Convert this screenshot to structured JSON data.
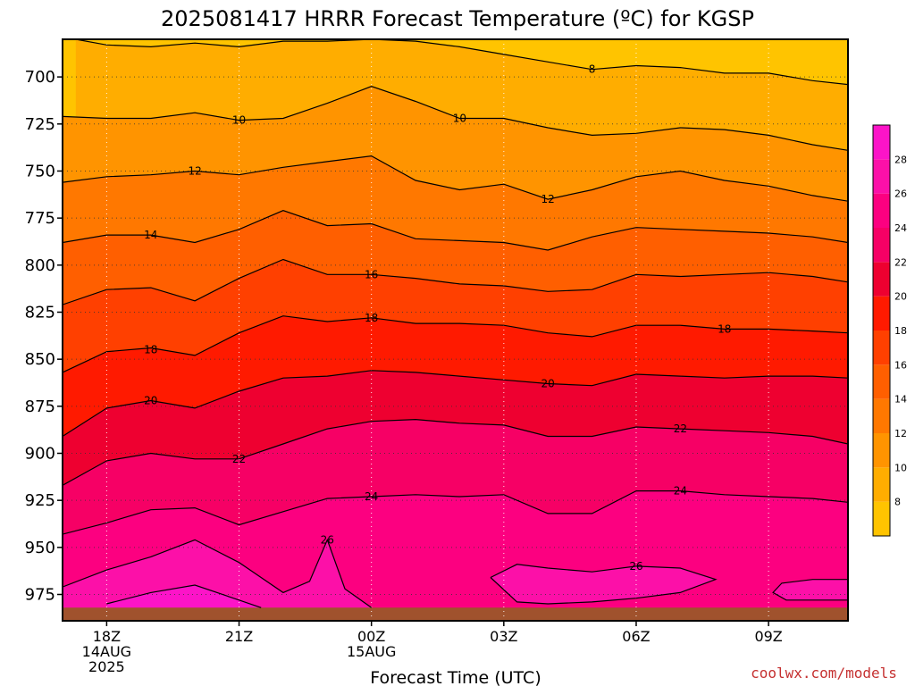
{
  "chart_data": {
    "type": "heatmap",
    "title": "2025081417 HRRR Forecast Temperature (ºC) for KGSP",
    "xlabel": "Forecast Time (UTC)",
    "ylabel": "",
    "credit": "coolwx.com/models",
    "x_ticks": [
      {
        "hour": 1,
        "lines": [
          "18Z",
          "14AUG",
          "2025"
        ]
      },
      {
        "hour": 4,
        "lines": [
          "21Z"
        ]
      },
      {
        "hour": 7,
        "lines": [
          "00Z",
          "15AUG"
        ]
      },
      {
        "hour": 10,
        "lines": [
          "03Z"
        ]
      },
      {
        "hour": 13,
        "lines": [
          "06Z"
        ]
      },
      {
        "hour": 16,
        "lines": [
          "09Z"
        ]
      }
    ],
    "xlim": [
      0,
      17.8
    ],
    "ylim": [
      680,
      989
    ],
    "y_axis_reversed": true,
    "y_ticks": [
      700,
      725,
      750,
      775,
      800,
      825,
      850,
      875,
      900,
      925,
      950,
      975
    ],
    "grid": true,
    "colorbar": {
      "labels": [
        8,
        10,
        12,
        14,
        16,
        18,
        20,
        22,
        24,
        26,
        28
      ],
      "bands": [
        {
          "min": 6,
          "max": 8,
          "color": "#ffc400"
        },
        {
          "min": 8,
          "max": 10,
          "color": "#ffad00"
        },
        {
          "min": 10,
          "max": 12,
          "color": "#ff9400"
        },
        {
          "min": 12,
          "max": 14,
          "color": "#ff7800"
        },
        {
          "min": 14,
          "max": 16,
          "color": "#ff5f00"
        },
        {
          "min": 16,
          "max": 18,
          "color": "#ff4000"
        },
        {
          "min": 18,
          "max": 20,
          "color": "#ff1a00"
        },
        {
          "min": 20,
          "max": 22,
          "color": "#ee0030"
        },
        {
          "min": 22,
          "max": 24,
          "color": "#f60065"
        },
        {
          "min": 24,
          "max": 26,
          "color": "#fc0080"
        },
        {
          "min": 26,
          "max": 28,
          "color": "#fc10a8"
        },
        {
          "min": 28,
          "max": 30,
          "color": "#fc14c8"
        }
      ]
    },
    "ground_color": "#a0522d",
    "ground_pressure": 982,
    "contours": [
      {
        "level": 8,
        "points": [
          [
            0.3,
            680
          ],
          [
            1,
            683
          ],
          [
            2,
            684
          ],
          [
            3,
            682
          ],
          [
            4,
            684
          ],
          [
            5,
            681
          ],
          [
            6,
            681
          ],
          [
            7,
            680
          ],
          [
            8,
            681
          ],
          [
            9,
            684
          ],
          [
            10,
            688
          ],
          [
            11,
            692
          ],
          [
            12,
            696
          ],
          [
            13,
            694
          ],
          [
            14,
            695
          ],
          [
            15,
            698
          ],
          [
            16,
            698
          ],
          [
            17,
            702
          ],
          [
            17.8,
            704
          ]
        ]
      },
      {
        "level": 10,
        "points": [
          [
            0,
            721
          ],
          [
            1,
            722
          ],
          [
            2,
            722
          ],
          [
            3,
            719
          ],
          [
            4,
            723
          ],
          [
            5,
            722
          ],
          [
            6,
            714
          ],
          [
            7,
            705
          ],
          [
            8,
            713
          ],
          [
            9,
            722
          ],
          [
            10,
            722
          ],
          [
            11,
            727
          ],
          [
            12,
            731
          ],
          [
            13,
            730
          ],
          [
            14,
            727
          ],
          [
            15,
            728
          ],
          [
            16,
            731
          ],
          [
            17,
            736
          ],
          [
            17.8,
            739
          ]
        ]
      },
      {
        "level": 12,
        "points": [
          [
            0,
            756
          ],
          [
            1,
            753
          ],
          [
            2,
            752
          ],
          [
            3,
            750
          ],
          [
            4,
            752
          ],
          [
            5,
            748
          ],
          [
            6,
            745
          ],
          [
            7,
            742
          ],
          [
            8,
            755
          ],
          [
            9,
            760
          ],
          [
            10,
            757
          ],
          [
            11,
            765
          ],
          [
            12,
            760
          ],
          [
            13,
            753
          ],
          [
            14,
            750
          ],
          [
            15,
            755
          ],
          [
            16,
            758
          ],
          [
            17,
            763
          ],
          [
            17.8,
            766
          ]
        ]
      },
      {
        "level": 14,
        "points": [
          [
            0,
            788
          ],
          [
            1,
            784
          ],
          [
            2,
            784
          ],
          [
            3,
            788
          ],
          [
            4,
            781
          ],
          [
            5,
            771
          ],
          [
            6,
            779
          ],
          [
            7,
            778
          ],
          [
            8,
            786
          ],
          [
            9,
            787
          ],
          [
            10,
            788
          ],
          [
            11,
            792
          ],
          [
            12,
            785
          ],
          [
            13,
            780
          ],
          [
            14,
            781
          ],
          [
            15,
            782
          ],
          [
            16,
            783
          ],
          [
            17,
            785
          ],
          [
            17.8,
            788
          ]
        ]
      },
      {
        "level": 16,
        "points": [
          [
            0,
            821
          ],
          [
            1,
            813
          ],
          [
            2,
            812
          ],
          [
            3,
            819
          ],
          [
            4,
            807
          ],
          [
            5,
            797
          ],
          [
            6,
            805
          ],
          [
            7,
            805
          ],
          [
            8,
            807
          ],
          [
            9,
            810
          ],
          [
            10,
            811
          ],
          [
            11,
            814
          ],
          [
            12,
            813
          ],
          [
            13,
            805
          ],
          [
            14,
            806
          ],
          [
            15,
            805
          ],
          [
            16,
            804
          ],
          [
            17,
            806
          ],
          [
            17.8,
            809
          ]
        ]
      },
      {
        "level": 18,
        "points": [
          [
            0,
            857
          ],
          [
            1,
            846
          ],
          [
            2,
            844
          ],
          [
            3,
            848
          ],
          [
            4,
            836
          ],
          [
            5,
            827
          ],
          [
            6,
            830
          ],
          [
            7,
            828
          ],
          [
            8,
            831
          ],
          [
            9,
            831
          ],
          [
            10,
            832
          ],
          [
            11,
            836
          ],
          [
            12,
            838
          ],
          [
            13,
            832
          ],
          [
            14,
            832
          ],
          [
            15,
            834
          ],
          [
            16,
            834
          ],
          [
            17,
            835
          ],
          [
            17.8,
            836
          ]
        ]
      },
      {
        "level": 20,
        "points": [
          [
            0,
            891
          ],
          [
            1,
            876
          ],
          [
            2,
            872
          ],
          [
            3,
            876
          ],
          [
            4,
            867
          ],
          [
            5,
            860
          ],
          [
            6,
            859
          ],
          [
            7,
            856
          ],
          [
            8,
            857
          ],
          [
            9,
            859
          ],
          [
            10,
            861
          ],
          [
            11,
            863
          ],
          [
            12,
            864
          ],
          [
            13,
            858
          ],
          [
            14,
            859
          ],
          [
            15,
            860
          ],
          [
            16,
            859
          ],
          [
            17,
            859
          ],
          [
            17.8,
            860
          ]
        ]
      },
      {
        "level": 22,
        "points": [
          [
            0,
            917
          ],
          [
            1,
            904
          ],
          [
            2,
            900
          ],
          [
            3,
            903
          ],
          [
            4,
            903
          ],
          [
            5,
            895
          ],
          [
            6,
            887
          ],
          [
            7,
            883
          ],
          [
            8,
            882
          ],
          [
            9,
            884
          ],
          [
            10,
            885
          ],
          [
            11,
            891
          ],
          [
            12,
            891
          ],
          [
            13,
            886
          ],
          [
            14,
            887
          ],
          [
            15,
            888
          ],
          [
            16,
            889
          ],
          [
            17,
            891
          ],
          [
            17.8,
            895
          ]
        ]
      },
      {
        "level": 24,
        "points": [
          [
            0,
            943
          ],
          [
            1,
            937
          ],
          [
            2,
            930
          ],
          [
            3,
            929
          ],
          [
            4,
            938
          ],
          [
            5,
            931
          ],
          [
            6,
            924
          ],
          [
            7,
            923
          ],
          [
            8,
            922
          ],
          [
            9,
            923
          ],
          [
            10,
            922
          ],
          [
            11,
            932
          ],
          [
            12,
            932
          ],
          [
            13,
            920
          ],
          [
            14,
            920
          ],
          [
            15,
            922
          ],
          [
            16,
            923
          ],
          [
            17,
            924
          ],
          [
            17.8,
            926
          ]
        ]
      },
      {
        "level": 26,
        "points": [
          [
            0,
            971
          ],
          [
            1,
            962
          ],
          [
            2,
            955
          ],
          [
            3,
            946
          ],
          [
            4,
            958
          ],
          [
            5,
            974
          ],
          [
            5.6,
            968
          ],
          [
            6,
            946
          ],
          [
            6.4,
            972
          ],
          [
            7,
            982
          ]
        ]
      },
      {
        "level": 26,
        "points": [
          [
            9.7,
            966
          ],
          [
            10.3,
            959
          ],
          [
            11,
            961
          ],
          [
            12,
            963
          ],
          [
            13,
            960
          ],
          [
            14,
            961
          ],
          [
            14.8,
            967
          ],
          [
            14,
            974
          ],
          [
            13,
            977
          ],
          [
            12,
            979
          ],
          [
            11,
            980
          ],
          [
            10.3,
            979
          ],
          [
            9.7,
            966
          ]
        ]
      },
      {
        "level": 28,
        "points": [
          [
            1,
            980
          ],
          [
            2,
            974
          ],
          [
            3,
            970
          ],
          [
            4,
            978
          ],
          [
            4.5,
            982
          ]
        ]
      },
      {
        "level": 26,
        "points": [
          [
            17.8,
            967
          ],
          [
            17,
            967
          ],
          [
            16.3,
            969
          ],
          [
            16.1,
            974
          ],
          [
            16.4,
            978
          ],
          [
            17,
            978
          ],
          [
            17.8,
            978
          ]
        ]
      }
    ],
    "contour_labels": [
      {
        "text": "8",
        "x": 12,
        "y": 696
      },
      {
        "text": "10",
        "x": 4,
        "y": 723
      },
      {
        "text": "10",
        "x": 9,
        "y": 722
      },
      {
        "text": "12",
        "x": 3,
        "y": 750
      },
      {
        "text": "12",
        "x": 11,
        "y": 765
      },
      {
        "text": "14",
        "x": 2,
        "y": 784
      },
      {
        "text": "16",
        "x": 7,
        "y": 805
      },
      {
        "text": "18",
        "x": 2,
        "y": 845
      },
      {
        "text": "18",
        "x": 7,
        "y": 828
      },
      {
        "text": "18",
        "x": 15,
        "y": 834
      },
      {
        "text": "20",
        "x": 2,
        "y": 872
      },
      {
        "text": "20",
        "x": 11,
        "y": 863
      },
      {
        "text": "22",
        "x": 4,
        "y": 903
      },
      {
        "text": "22",
        "x": 14,
        "y": 887
      },
      {
        "text": "24",
        "x": 7,
        "y": 923
      },
      {
        "text": "24",
        "x": 14,
        "y": 920
      },
      {
        "text": "26",
        "x": 6,
        "y": 946
      },
      {
        "text": "26",
        "x": 13,
        "y": 960
      }
    ]
  }
}
